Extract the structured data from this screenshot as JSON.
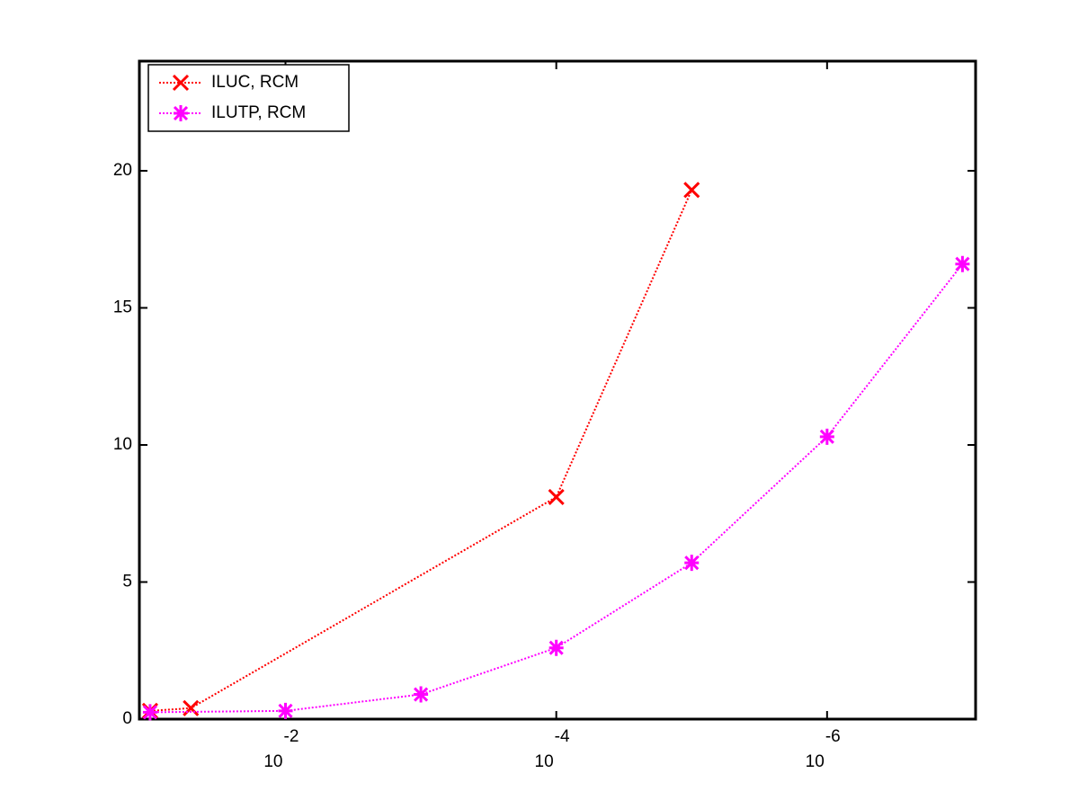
{
  "chart_data": {
    "type": "line",
    "xscale": "log",
    "xreverse": true,
    "xlim": [
      8e-08,
      0.12
    ],
    "ylim": [
      0,
      24
    ],
    "xticks": [
      {
        "value": 0.01,
        "label": "10",
        "exponent": "-2"
      },
      {
        "value": 0.0001,
        "label": "10",
        "exponent": "-4"
      },
      {
        "value": 1e-06,
        "label": "10",
        "exponent": "-6"
      }
    ],
    "yticks": [
      0,
      5,
      10,
      15,
      20
    ],
    "legend": "upper left",
    "series": [
      {
        "name": "ILUC, RCM",
        "color": "#ff0000",
        "marker": "x",
        "linestyle": "dotted",
        "x": [
          0.1,
          0.05,
          0.0001,
          1e-05
        ],
        "values": [
          0.3,
          0.4,
          8.1,
          19.3
        ]
      },
      {
        "name": "ILUTP, RCM",
        "color": "#ff00ff",
        "marker": "asterisk",
        "linestyle": "dotted",
        "x": [
          0.1,
          0.01,
          0.001,
          0.0001,
          1e-05,
          1e-06,
          1e-07
        ],
        "values": [
          0.25,
          0.3,
          0.9,
          2.6,
          5.7,
          10.3,
          16.6
        ]
      }
    ]
  }
}
